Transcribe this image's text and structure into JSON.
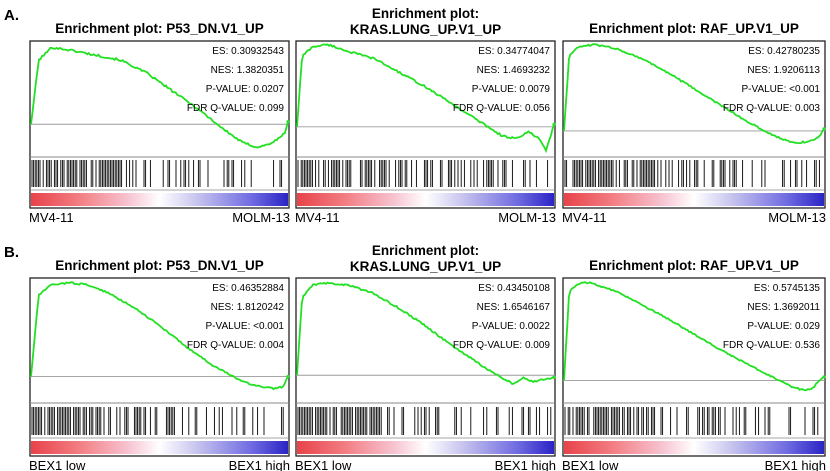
{
  "panels": [
    {
      "letter": "A.",
      "plots": [
        {
          "title_lines": [
            "Enrichment plot: P53_DN.V1_UP"
          ],
          "stats": [
            "ES: 0.30932543",
            "NES: 1.3820351",
            "P-VALUE: 0.0207",
            "FDR Q-VALUE: 0.099"
          ],
          "x_left": "MV4-11",
          "x_right": "MOLM-13"
        },
        {
          "title_lines": [
            "Enrichment plot:",
            "KRAS.LUNG_UP.V1_UP"
          ],
          "stats": [
            "ES: 0.34774047",
            "NES: 1.4693232",
            "P-VALUE: 0.0079",
            "FDR Q-VALUE: 0.056"
          ],
          "x_left": "MV4-11",
          "x_right": "MOLM-13"
        },
        {
          "title_lines": [
            "Enrichment plot: RAF_UP.V1_UP"
          ],
          "stats": [
            "ES: 0.42780235",
            "NES: 1.9206113",
            "P-VALUE: <0.001",
            "FDR Q-VALUE: 0.003"
          ],
          "x_left": "MV4-11",
          "x_right": "MOLM-13"
        }
      ]
    },
    {
      "letter": "B.",
      "plots": [
        {
          "title_lines": [
            "Enrichment plot: P53_DN.V1_UP"
          ],
          "stats": [
            "ES: 0.46352884",
            "NES: 1.8120242",
            "P-VALUE: <0.001",
            "FDR Q-VALUE: 0.004"
          ],
          "x_left": "BEX1 low",
          "x_right": "BEX1 high"
        },
        {
          "title_lines": [
            "Enrichment plot:",
            "KRAS.LUNG_UP.V1_UP"
          ],
          "stats": [
            "ES: 0.43450108",
            "NES: 1.6546167",
            "P-VALUE: 0.0022",
            "FDR Q-VALUE: 0.009"
          ],
          "x_left": "BEX1 low",
          "x_right": "BEX1 high"
        },
        {
          "title_lines": [
            "Enrichment plot: RAF_UP.V1_UP"
          ],
          "stats": [
            "ES: 0.5745135",
            "NES: 1.3692011",
            "P-VALUE: 0.029",
            "FDR Q-VALUE: 0.536"
          ],
          "x_left": "BEX1 low",
          "x_right": "BEX1 high"
        }
      ]
    }
  ],
  "chart_data": [
    {
      "type": "line",
      "panel": "A",
      "title": "Enrichment plot: P53_DN.V1_UP",
      "es": 0.30932543,
      "x": [
        0,
        0.03,
        0.08,
        0.15,
        0.25,
        0.35,
        0.45,
        0.55,
        0.65,
        0.75,
        0.82,
        0.88,
        0.92,
        0.96,
        0.99,
        1.0
      ],
      "y": [
        0.0,
        0.25,
        0.3,
        0.29,
        0.27,
        0.25,
        0.2,
        0.13,
        0.06,
        -0.02,
        -0.07,
        -0.09,
        -0.08,
        -0.06,
        -0.03,
        0.01
      ]
    },
    {
      "type": "line",
      "panel": "A",
      "title": "Enrichment plot: KRAS.LUNG_UP.V1_UP",
      "es": 0.34774047,
      "x": [
        0,
        0.02,
        0.06,
        0.12,
        0.2,
        0.3,
        0.4,
        0.5,
        0.6,
        0.7,
        0.8,
        0.86,
        0.9,
        0.94,
        0.97,
        1.0
      ],
      "y": [
        0.0,
        0.3,
        0.34,
        0.35,
        0.32,
        0.29,
        0.23,
        0.17,
        0.1,
        0.03,
        -0.04,
        -0.05,
        -0.02,
        -0.05,
        -0.1,
        0.01
      ]
    },
    {
      "type": "line",
      "panel": "A",
      "title": "Enrichment plot: RAF_UP.V1_UP",
      "es": 0.42780235,
      "x": [
        0,
        0.02,
        0.06,
        0.12,
        0.2,
        0.3,
        0.4,
        0.5,
        0.6,
        0.7,
        0.8,
        0.86,
        0.9,
        0.95,
        0.98,
        1.0
      ],
      "y": [
        0.0,
        0.38,
        0.42,
        0.43,
        0.41,
        0.36,
        0.29,
        0.21,
        0.13,
        0.05,
        -0.02,
        -0.05,
        -0.06,
        -0.05,
        -0.03,
        0.01
      ]
    },
    {
      "type": "line",
      "panel": "B",
      "title": "Enrichment plot: P53_DN.V1_UP",
      "es": 0.46352884,
      "x": [
        0,
        0.03,
        0.08,
        0.15,
        0.22,
        0.3,
        0.4,
        0.5,
        0.6,
        0.7,
        0.8,
        0.86,
        0.9,
        0.95,
        0.98,
        1.0
      ],
      "y": [
        0.0,
        0.4,
        0.45,
        0.46,
        0.45,
        0.41,
        0.34,
        0.25,
        0.15,
        0.06,
        -0.01,
        -0.04,
        -0.05,
        -0.06,
        -0.05,
        0.0
      ]
    },
    {
      "type": "line",
      "panel": "B",
      "title": "Enrichment plot: KRAS.LUNG_UP.V1_UP",
      "es": 0.43450108,
      "x": [
        0,
        0.02,
        0.06,
        0.12,
        0.2,
        0.3,
        0.4,
        0.5,
        0.6,
        0.7,
        0.78,
        0.84,
        0.88,
        0.92,
        0.96,
        1.0
      ],
      "y": [
        0.0,
        0.36,
        0.42,
        0.43,
        0.42,
        0.38,
        0.31,
        0.23,
        0.14,
        0.06,
        0.0,
        -0.04,
        -0.01,
        -0.03,
        -0.02,
        -0.01
      ]
    },
    {
      "type": "line",
      "panel": "B",
      "title": "Enrichment plot: RAF_UP.V1_UP",
      "es": 0.5745135,
      "x": [
        0,
        0.02,
        0.06,
        0.1,
        0.2,
        0.3,
        0.4,
        0.5,
        0.6,
        0.7,
        0.8,
        0.88,
        0.93,
        0.96,
        0.98,
        1.0
      ],
      "y": [
        0.0,
        0.52,
        0.57,
        0.57,
        0.52,
        0.44,
        0.36,
        0.27,
        0.18,
        0.1,
        0.02,
        -0.04,
        -0.06,
        -0.04,
        0.0,
        0.02
      ]
    }
  ],
  "colors": {
    "curve": "#22e022",
    "heat_low": "#e8434a",
    "heat_mid": "#ffffff",
    "heat_high": "#2b24c6"
  }
}
